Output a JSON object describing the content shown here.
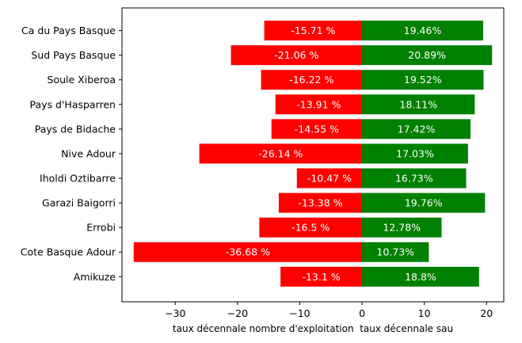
{
  "chart_data": {
    "type": "bar",
    "orientation": "horizontal",
    "categories": [
      "Ca du Pays Basque",
      "Sud Pays Basque",
      "Soule Xiberoa",
      "Pays d'Hasparren",
      "Pays de Bidache",
      "Nive Adour",
      "Iholdi Oztibarre",
      "Garazi Baigorri",
      "Errobi",
      "Cote Basque Adour",
      "Amikuze"
    ],
    "series": [
      {
        "color": "#ff0000",
        "values": [
          -15.71,
          -21.06,
          -16.22,
          -13.91,
          -14.55,
          -26.14,
          -10.47,
          -13.38,
          -16.5,
          -36.68,
          -13.1
        ],
        "labels": [
          "-15.71 %",
          "-21.06 %",
          "-16.22 %",
          "-13.91 %",
          "-14.55 %",
          "-26.14 %",
          "-10.47 %",
          "-13.38 %",
          "-16.5 %",
          "-36.68 %",
          "-13.1 %"
        ]
      },
      {
        "color": "#008000",
        "values": [
          19.46,
          20.89,
          19.52,
          18.11,
          17.42,
          17.03,
          16.73,
          19.76,
          12.78,
          10.73,
          18.8
        ],
        "labels": [
          "19.46%",
          "20.89%",
          "19.52%",
          "18.11%",
          "17.42%",
          "17.03%",
          "16.73%",
          "19.76%",
          "12.78%",
          "10.73%",
          "18.8%"
        ]
      }
    ],
    "xlabel": "taux décennale nombre d'exploitation  taux décennale sau",
    "xlim": [
      -38.56,
      22.77
    ],
    "xticks": [
      -30,
      -20,
      -10,
      0,
      10,
      20
    ],
    "xtick_labels": [
      "−30",
      "−20",
      "−10",
      "0",
      "10",
      "20"
    ],
    "grid": false,
    "legend": "none"
  }
}
